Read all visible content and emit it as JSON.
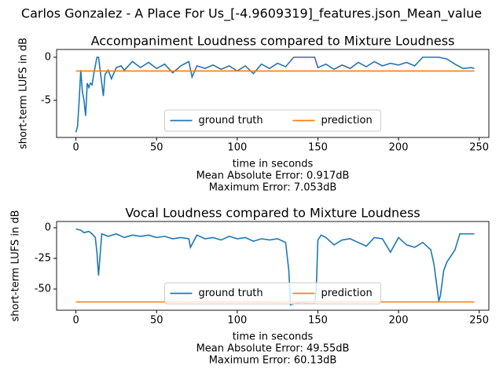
{
  "title": "Carlos Gonzalez - A Place For Us_[-4.9609319]_features.json_Mean_value",
  "chart_data": [
    {
      "type": "line",
      "title": "Accompaniment Loudness compared to Mixture Loudness",
      "xlabel": [
        "time in seconds",
        "Mean Absolute Error: 0.917dB",
        "Maximum Error: 7.053dB"
      ],
      "ylabel": "short-term LUFS in dB",
      "xlim": [
        -12,
        256
      ],
      "xticks": [
        0,
        50,
        100,
        150,
        200,
        250
      ],
      "ylim": [
        -9.3,
        0.9
      ],
      "yticks": [
        -5,
        0
      ],
      "legend": "lower center",
      "series": [
        {
          "name": "ground truth",
          "color": "#1f77b4",
          "x": [
            0,
            1,
            2,
            3,
            4,
            5,
            6,
            7,
            8,
            9,
            10,
            11,
            12,
            13,
            14,
            15,
            16,
            17,
            18,
            20,
            22,
            25,
            28,
            30,
            35,
            40,
            45,
            50,
            55,
            60,
            65,
            70,
            72,
            75,
            80,
            85,
            90,
            95,
            100,
            105,
            110,
            115,
            120,
            125,
            130,
            135,
            140,
            145,
            148,
            150,
            155,
            160,
            165,
            170,
            175,
            180,
            185,
            190,
            195,
            200,
            205,
            210,
            215,
            220,
            225,
            230,
            235,
            240,
            245,
            247
          ],
          "values": [
            -8.7,
            -8,
            -5,
            -1.5,
            -4,
            -5,
            -6.8,
            -3,
            -3.5,
            -3,
            -3.2,
            -2,
            -1,
            0,
            0,
            -1.5,
            -3,
            -4.5,
            -2,
            -1.5,
            -2.5,
            -1.2,
            -1,
            -1.5,
            -0.5,
            -1.2,
            -0.6,
            -1.3,
            -0.8,
            -1.8,
            -1,
            -0.5,
            -2.3,
            -1,
            -1.3,
            -0.9,
            -1.4,
            -1,
            -1.6,
            -1,
            -1.9,
            -0.8,
            -1.3,
            -0.7,
            -1.1,
            0,
            0,
            0,
            0,
            -1.2,
            -0.8,
            -1.4,
            -0.9,
            -1.3,
            -0.6,
            -1.1,
            -0.5,
            -1,
            -0.7,
            -0.9,
            -0.6,
            -1,
            0,
            0,
            0,
            -0.2,
            -0.8,
            -1.3,
            -1.2,
            -1.3
          ]
        },
        {
          "name": "prediction",
          "color": "#ff7f0e",
          "x": [
            0,
            247
          ],
          "values": [
            -1.6,
            -1.6
          ]
        }
      ]
    },
    {
      "type": "line",
      "title": "Vocal Loudness compared to Mixture Loudness",
      "xlabel": [
        "time in seconds",
        "Mean Absolute Error: 49.55dB",
        "Maximum Error: 60.13dB"
      ],
      "ylabel": "short-term LUFS in dB",
      "xlim": [
        -12,
        256
      ],
      "xticks": [
        0,
        50,
        100,
        150,
        200,
        250
      ],
      "ylim": [
        -67.3,
        5.1
      ],
      "yticks": [
        -50,
        -25,
        0
      ],
      "legend": "lower center",
      "series": [
        {
          "name": "ground truth",
          "color": "#1f77b4",
          "x": [
            0,
            3,
            5,
            8,
            10,
            12,
            13,
            14,
            16,
            20,
            25,
            30,
            35,
            40,
            45,
            50,
            55,
            60,
            65,
            70,
            71,
            75,
            80,
            85,
            90,
            95,
            100,
            105,
            110,
            115,
            120,
            125,
            130,
            132,
            133,
            135,
            140,
            145,
            148,
            149,
            150,
            152,
            155,
            160,
            165,
            170,
            175,
            180,
            185,
            190,
            195,
            200,
            205,
            210,
            215,
            220,
            222,
            224,
            225,
            226,
            228,
            230,
            235,
            238,
            240,
            245,
            247
          ],
          "values": [
            -1,
            -2,
            -4,
            -3,
            -5,
            -8,
            -20,
            -39,
            -5,
            -7,
            -5,
            -8,
            -6,
            -7,
            -6,
            -8,
            -7,
            -9,
            -8,
            -9,
            -16,
            -6,
            -9,
            -8,
            -10,
            -7,
            -9,
            -8,
            -11,
            -9,
            -10,
            -9,
            -12,
            -35,
            -63,
            -62,
            -61,
            -62,
            -62,
            -50,
            -10,
            -6,
            -8,
            -14,
            -10,
            -9,
            -12,
            -15,
            -8,
            -9,
            -20,
            -8,
            -14,
            -16,
            -12,
            -18,
            -30,
            -50,
            -60,
            -55,
            -35,
            -28,
            -18,
            -5,
            -5,
            -5,
            -5
          ]
        },
        {
          "name": "prediction",
          "color": "#ff7f0e",
          "x": [
            0,
            247
          ],
          "values": [
            -60.5,
            -60.5
          ]
        }
      ]
    }
  ]
}
